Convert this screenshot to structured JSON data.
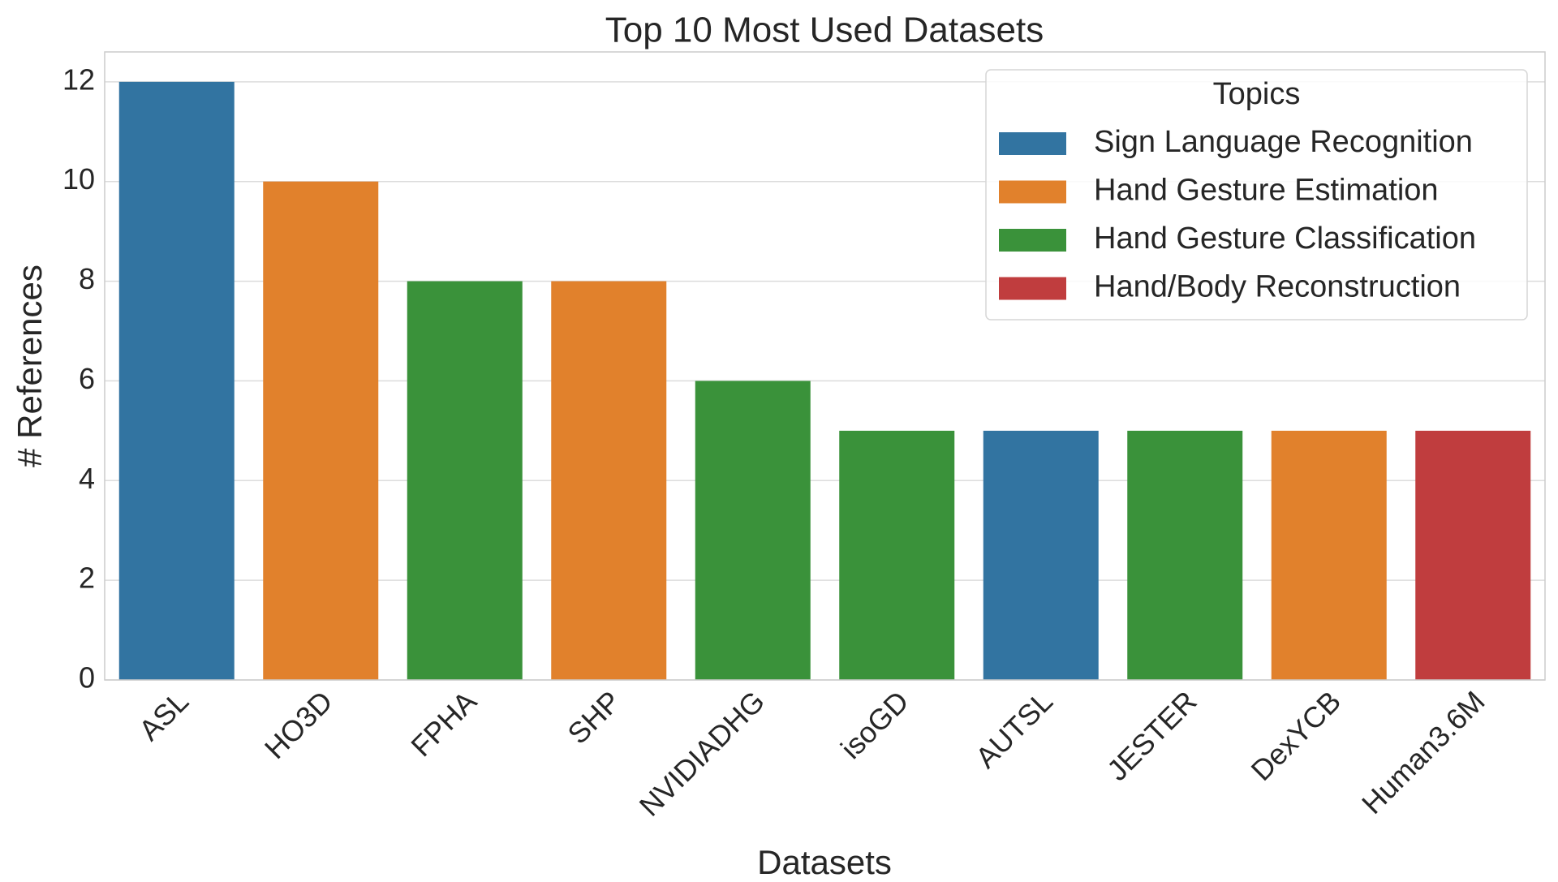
{
  "chart_data": {
    "type": "bar",
    "title": "Top 10 Most Used Datasets",
    "x_label": "Datasets",
    "y_label": "# References",
    "categories": [
      "ASL",
      "HO3D",
      "FPHA",
      "SHP",
      "NVIDIADHG",
      "isoGD",
      "AUTSL",
      "JESTER",
      "DexYCB",
      "Human3.6M"
    ],
    "legend_title": "Topics",
    "legend_position": "upper right",
    "series": [
      {
        "name": "Sign Language Recognition",
        "color": "#3274a1",
        "values": [
          12,
          null,
          null,
          null,
          null,
          null,
          5,
          null,
          null,
          null
        ]
      },
      {
        "name": "Hand Gesture Estimation",
        "color": "#e1812c",
        "values": [
          null,
          10,
          null,
          8,
          null,
          null,
          null,
          null,
          5,
          null
        ]
      },
      {
        "name": "Hand Gesture Classification",
        "color": "#3a923a",
        "values": [
          null,
          null,
          8,
          null,
          6,
          5,
          null,
          5,
          null,
          null
        ]
      },
      {
        "name": "Hand/Body Reconstruction",
        "color": "#c03d3e",
        "values": [
          null,
          null,
          null,
          null,
          null,
          null,
          null,
          null,
          null,
          5
        ]
      }
    ],
    "ylim": [
      0,
      12.6
    ],
    "yticks": [
      0,
      2,
      4,
      6,
      8,
      10,
      12
    ],
    "grid": true
  }
}
